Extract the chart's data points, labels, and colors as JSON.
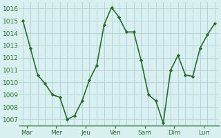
{
  "x_values": [
    0,
    1,
    2,
    3,
    4,
    5,
    6,
    7,
    8,
    9,
    10,
    11,
    12,
    13,
    14,
    15,
    16,
    17,
    18,
    19,
    20,
    21,
    22,
    23,
    24,
    25,
    26
  ],
  "y_values": [
    1015.0,
    1012.8,
    1010.6,
    1009.9,
    1009.0,
    1008.8,
    1007.0,
    1007.3,
    1008.5,
    1010.2,
    1011.4,
    1014.7,
    1016.1,
    1015.3,
    1014.1,
    1014.1,
    1011.8,
    1009.0,
    1008.5,
    1006.7,
    1011.0,
    1012.2,
    1010.6,
    1010.5,
    1012.8,
    1013.9,
    1014.8
  ],
  "x_ticks_pos": [
    0.5,
    4.5,
    8.5,
    12.5,
    16.5,
    20.5,
    24.5
  ],
  "x_tick_labels": [
    "Mar",
    "Mer",
    "Jeu",
    "Ven",
    "Sam",
    "Dim",
    "Lun"
  ],
  "day_dividers": [
    2,
    6,
    10,
    14,
    18,
    22
  ],
  "y_ticks": [
    1007,
    1008,
    1009,
    1010,
    1011,
    1012,
    1013,
    1014,
    1015,
    1016
  ],
  "ylim": [
    1006.5,
    1016.5
  ],
  "xlim": [
    -0.5,
    26.5
  ],
  "line_color": "#2d6a2d",
  "marker": "D",
  "marker_size": 2.2,
  "background_color": "#d8f0f0",
  "grid_color": "#b8d4d4",
  "tick_color": "#2d6a2d",
  "tick_fontsize": 6.5,
  "line_width": 1.2,
  "spine_color": "#2d6a2d"
}
